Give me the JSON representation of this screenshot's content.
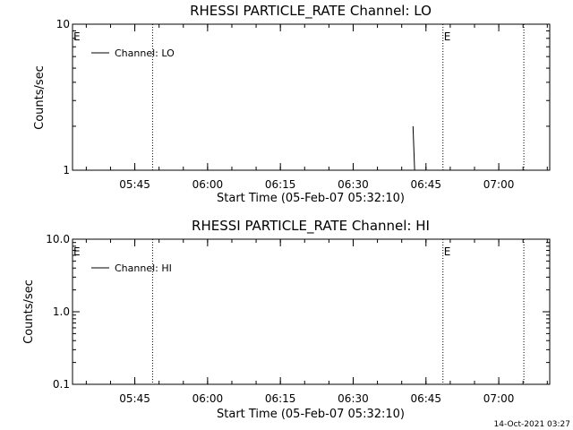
{
  "chart_data": [
    {
      "type": "line",
      "title": "RHESSI PARTICLE_RATE Channel: LO",
      "xlabel": "Start Time (05-Feb-07 05:32:10)",
      "ylabel": "Counts/sec",
      "yscale": "log",
      "ylim": [
        1,
        10
      ],
      "xlim": [
        "05:32:10",
        "07:10:30"
      ],
      "ytick_labels": [
        "1",
        "10"
      ],
      "xtick_labels": [
        "05:45",
        "06:00",
        "06:15",
        "06:30",
        "06:45",
        "07:00"
      ],
      "legend": "top-left",
      "series": [
        {
          "name": "Channel: LO",
          "color": "#000000",
          "points": [
            [
              "06:42:20",
              2.0
            ],
            [
              "06:42:40",
              1.0
            ]
          ]
        }
      ],
      "event_lines": [
        "05:48:40",
        "06:48:30",
        "07:05:10"
      ],
      "event_markers": [
        {
          "text": "E",
          "time": "05:32:10"
        },
        {
          "text": "E",
          "time": "06:48:30"
        }
      ],
      "grid": false
    },
    {
      "type": "line",
      "title": "RHESSI PARTICLE_RATE Channel: HI",
      "xlabel": "Start Time (05-Feb-07 05:32:10)",
      "ylabel": "Counts/sec",
      "yscale": "log",
      "ylim": [
        0.1,
        10
      ],
      "xlim": [
        "05:32:10",
        "07:10:30"
      ],
      "ytick_labels": [
        "0.1",
        "1.0",
        "10.0"
      ],
      "xtick_labels": [
        "05:45",
        "06:00",
        "06:15",
        "06:30",
        "06:45",
        "07:00"
      ],
      "legend": "top-left",
      "series": [
        {
          "name": "Channel: HI",
          "color": "#000000",
          "points": []
        }
      ],
      "event_lines": [
        "05:48:40",
        "06:48:30",
        "07:05:10"
      ],
      "event_markers": [
        {
          "text": "E",
          "time": "05:32:10"
        },
        {
          "text": "E",
          "time": "06:48:30"
        }
      ],
      "grid": false
    }
  ],
  "footer": {
    "timestamp": "14-Oct-2021 03:27"
  }
}
